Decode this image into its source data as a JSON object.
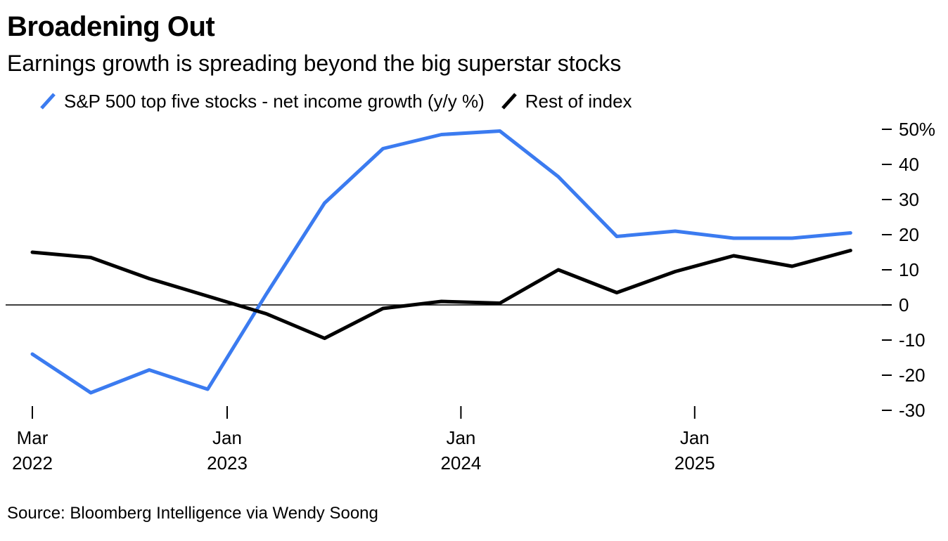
{
  "title": "Broadening Out",
  "subtitle": "Earnings growth is spreading beyond the big superstar stocks",
  "source": "Source: Bloomberg Intelligence via Wendy Soong",
  "chart_data": {
    "type": "line",
    "title": "Broadening Out",
    "subtitle": "Earnings growth is spreading beyond the big superstar stocks",
    "x": [
      "2022-03",
      "2022-06",
      "2022-09",
      "2022-12",
      "2023-03",
      "2023-06",
      "2023-09",
      "2023-12",
      "2024-03",
      "2024-06",
      "2024-09",
      "2024-12",
      "2025-03",
      "2025-06",
      "2025-09"
    ],
    "series": [
      {
        "name": "S&P 500 top five stocks - net income growth (y/y %)",
        "color": "#3b7bf0",
        "values": [
          -14,
          -25,
          -18.5,
          -24,
          3,
          29,
          44.5,
          48.5,
          49.5,
          36.5,
          19.5,
          21,
          19,
          19,
          20.5
        ]
      },
      {
        "name": "Rest of index",
        "color": "#000000",
        "values": [
          15,
          13.5,
          7.5,
          2.5,
          -2.5,
          -9.5,
          -1,
          1,
          0.5,
          10,
          3.5,
          9.5,
          14,
          11,
          15.5
        ]
      }
    ],
    "ylim": [
      -30,
      50
    ],
    "yticks": [
      50,
      40,
      30,
      20,
      10,
      0,
      -10,
      -20,
      -30
    ],
    "ytick_labels": [
      "50%",
      "40",
      "30",
      "20",
      "10",
      "0",
      "-10",
      "-20",
      "-30"
    ],
    "xticks": [
      {
        "x": "2022-03",
        "line1": "Mar",
        "line2": "2022"
      },
      {
        "x": "2023-01",
        "line1": "Jan",
        "line2": "2023"
      },
      {
        "x": "2024-01",
        "line1": "Jan",
        "line2": "2024"
      },
      {
        "x": "2025-01",
        "line1": "Jan",
        "line2": "2025"
      }
    ],
    "zero_line": true,
    "grid": false,
    "legend_position": "top-left"
  }
}
